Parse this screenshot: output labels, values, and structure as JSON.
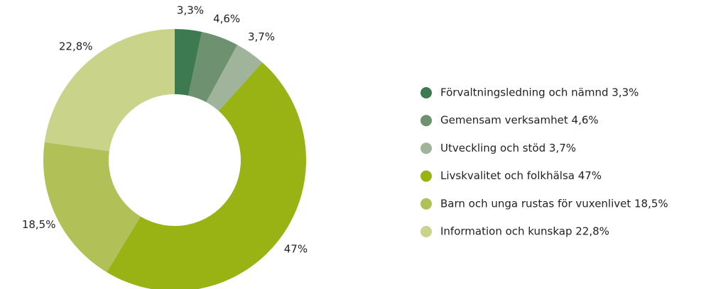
{
  "chart_data": {
    "type": "donut",
    "categories": [
      "Förvaltningsledning och nämnd 3,3%",
      "Gemensam verksamhet 4,6%",
      "Utveckling och stöd 3,7%",
      "Livskvalitet och folkhälsa 47%",
      "Barn och unga rustas för vuxenlivet 18,5%",
      "Information och kunskap 22,8%"
    ],
    "values": [
      3.3,
      4.6,
      3.7,
      47,
      18.5,
      22.8
    ],
    "value_labels": [
      "3,3%",
      "4,6%",
      "3,7%",
      "47%",
      "18,5%",
      "22,8%"
    ],
    "colors": [
      "#3d7a4f",
      "#6e9270",
      "#9fb49a",
      "#99b314",
      "#b2c157",
      "#c9d389"
    ],
    "legend": "right"
  }
}
